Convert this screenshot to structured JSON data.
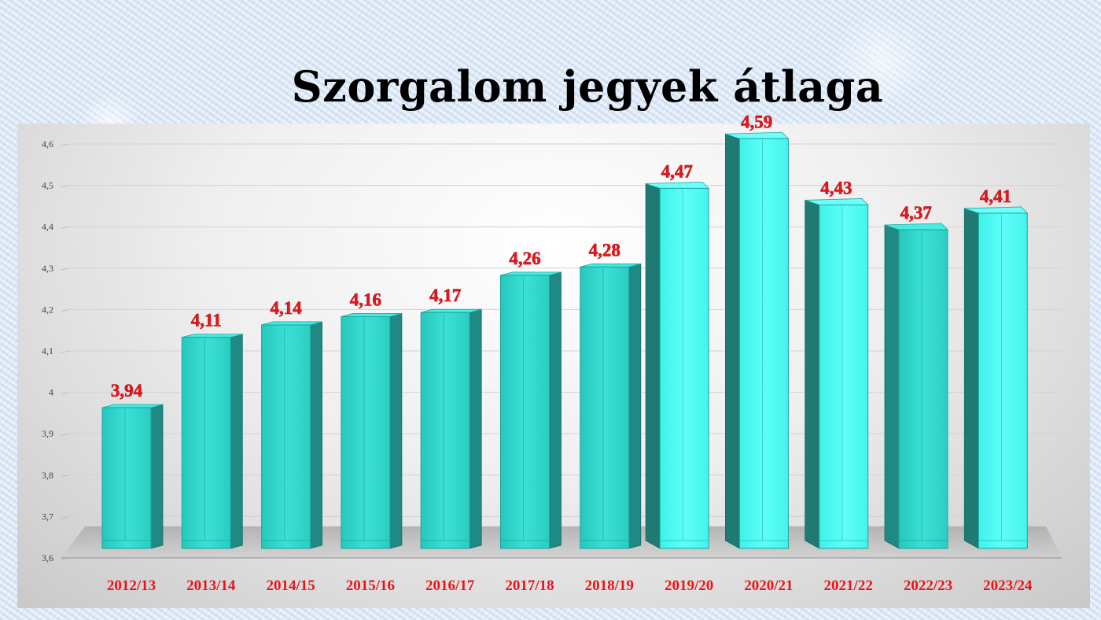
{
  "chart_data": {
    "type": "bar",
    "title": "Szorgalom jegyek átlaga",
    "categories": [
      "2012/13",
      "2013/14",
      "2014/15",
      "2015/16",
      "2016/17",
      "2017/18",
      "2018/19",
      "2019/20",
      "2020/21",
      "2021/22",
      "2022/23",
      "2023/24"
    ],
    "values": [
      3.94,
      4.11,
      4.14,
      4.16,
      4.17,
      4.26,
      4.28,
      4.47,
      4.59,
      4.43,
      4.37,
      4.41
    ],
    "value_labels": [
      "3,94",
      "4,11",
      "4,14",
      "4,16",
      "4,17",
      "4,26",
      "4,28",
      "4,47",
      "4,59",
      "4,43",
      "4,37",
      "4,41"
    ],
    "y_ticks": [
      "3,6",
      "3,7",
      "3,8",
      "3,9",
      "4",
      "4,1",
      "4,2",
      "4,3",
      "4,4",
      "4,5",
      "4,6"
    ],
    "ylim": [
      3.6,
      4.6
    ],
    "grid": true,
    "bar_color": "#2fd3c9",
    "label_color": "#e8141a"
  }
}
